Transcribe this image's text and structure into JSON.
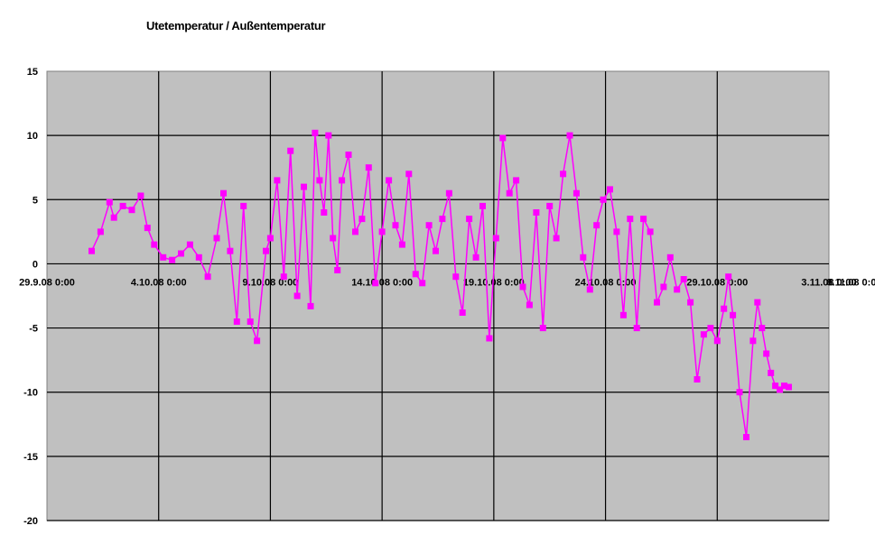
{
  "chart_data": {
    "type": "line",
    "title": "Utetemperatur / Außentemperatur",
    "xlabel": "",
    "ylabel": "",
    "x_ticks": [
      "29.9.08 0:00",
      "4.10.08 0:00",
      "9.10.08 0:00",
      "14.10.08 0:00",
      "19.10.08 0:00",
      "24.10.08 0:00",
      "29.10.08 0:00",
      "3.11.08 0:00",
      "8.11.08 0:00"
    ],
    "y_ticks": [
      "15",
      "10",
      "5",
      "0",
      "-5",
      "-10",
      "-15",
      "-20"
    ],
    "ylim": [
      -20,
      15
    ],
    "xlim_days": [
      0,
      35
    ],
    "grid": true,
    "plot_background": "#c0c0c0",
    "series_color": "#ff00ff",
    "series": [
      {
        "x_days": [
          2.0,
          2.4,
          2.8,
          3.0,
          3.4,
          3.8,
          4.2,
          4.5,
          4.8,
          5.2,
          5.6,
          6.0,
          6.4,
          6.8,
          7.2,
          7.6,
          7.9,
          8.2,
          8.5,
          8.8,
          9.1,
          9.4,
          9.8,
          10.0,
          10.3,
          10.6,
          10.9,
          11.2,
          11.5,
          11.8,
          12.0,
          12.2,
          12.4,
          12.6,
          12.8,
          13.0,
          13.2,
          13.5,
          13.8,
          14.1,
          14.4,
          14.7,
          15.0,
          15.3,
          15.6,
          15.9,
          16.2,
          16.5,
          16.8,
          17.1,
          17.4,
          17.7,
          18.0,
          18.3,
          18.6,
          18.9,
          19.2,
          19.5,
          19.8,
          20.1,
          20.4,
          20.7,
          21.0,
          21.3,
          21.6,
          21.9,
          22.2,
          22.5,
          22.8,
          23.1,
          23.4,
          23.7,
          24.0,
          24.3,
          24.6,
          24.9,
          25.2,
          25.5,
          25.8,
          26.1,
          26.4,
          26.7,
          27.0,
          27.3,
          27.6,
          27.9,
          28.2,
          28.5,
          28.8,
          29.1,
          29.4,
          29.7,
          30.0,
          30.3,
          30.5,
          30.7,
          31.0,
          31.3,
          31.6,
          31.8,
          32.0,
          32.2,
          32.4,
          32.6,
          32.8,
          33.0,
          33.2
        ],
        "y": [
          1.0,
          2.5,
          4.8,
          3.6,
          4.5,
          4.2,
          5.3,
          2.8,
          1.5,
          0.5,
          0.3,
          0.8,
          1.5,
          0.5,
          -1.0,
          2.0,
          5.5,
          1.0,
          -4.5,
          4.5,
          -4.5,
          -6.0,
          1.0,
          2.0,
          6.5,
          -1.0,
          8.8,
          -2.5,
          6.0,
          -3.3,
          10.2,
          6.5,
          4.0,
          10.0,
          2.0,
          -0.5,
          6.5,
          8.5,
          2.5,
          3.5,
          7.5,
          -1.5,
          2.5,
          6.5,
          3.0,
          1.5,
          7.0,
          -0.8,
          -1.5,
          3.0,
          1.0,
          3.5,
          5.5,
          -1.0,
          -3.8,
          3.5,
          0.5,
          4.5,
          -5.8,
          2.0,
          9.8,
          5.5,
          6.5,
          -1.8,
          -3.2,
          4.0,
          -5.0,
          4.5,
          2.0,
          7.0,
          10.0,
          5.5,
          0.5,
          -2.0,
          3.0,
          5.0,
          5.8,
          2.5,
          -4.0,
          3.5,
          -5.0,
          3.5,
          2.5,
          -3.0,
          -1.8,
          0.5,
          -2.0,
          -1.2,
          -3.0,
          -9.0,
          -5.5,
          -5.0,
          -6.0,
          -3.5,
          -1.0,
          -4.0,
          -10.0,
          -13.5,
          -6.0,
          -3.0,
          -5.0,
          -7.0,
          -8.5,
          -9.5,
          -9.8,
          -9.5,
          -9.6
        ]
      }
    ]
  }
}
